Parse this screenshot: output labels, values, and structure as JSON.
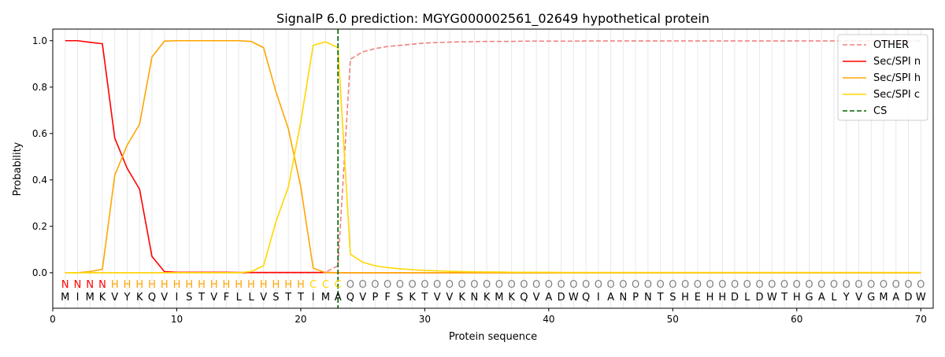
{
  "chart_data": {
    "type": "line",
    "title": "SignalP 6.0 prediction: MGYG000002561_02649 hypothetical protein",
    "xlabel": "Protein sequence",
    "ylabel": "Probability",
    "xlim": [
      0,
      71
    ],
    "ylim": [
      -0.153,
      1.05
    ],
    "xticks": [
      0,
      10,
      20,
      30,
      40,
      50,
      60,
      70
    ],
    "yticks": [
      0.0,
      0.2,
      0.4,
      0.6,
      0.8,
      1.0
    ],
    "ytick_labels": [
      "0.0",
      "0.2",
      "0.4",
      "0.6",
      "0.8",
      "1.0"
    ],
    "legend_position": "top-right",
    "sequence": [
      "M",
      "I",
      "M",
      "K",
      "V",
      "Y",
      "K",
      "Q",
      "V",
      "I",
      "S",
      "T",
      "V",
      "F",
      "L",
      "L",
      "V",
      "S",
      "T",
      "T",
      "I",
      "M",
      "A",
      "Q",
      "V",
      "P",
      "F",
      "S",
      "K",
      "T",
      "V",
      "V",
      "K",
      "N",
      "K",
      "M",
      "K",
      "Q",
      "V",
      "A",
      "D",
      "W",
      "Q",
      "I",
      "A",
      "N",
      "P",
      "N",
      "T",
      "S",
      "H",
      "E",
      "H",
      "H",
      "D",
      "L",
      "D",
      "W",
      "T",
      "H",
      "G",
      "A",
      "L",
      "Y",
      "V",
      "G",
      "M",
      "A",
      "D",
      "W"
    ],
    "labels": [
      "N",
      "N",
      "N",
      "N",
      "H",
      "H",
      "H",
      "H",
      "H",
      "H",
      "H",
      "H",
      "H",
      "H",
      "H",
      "H",
      "H",
      "H",
      "H",
      "H",
      "C",
      "C",
      "C",
      "O",
      "O",
      "O",
      "O",
      "O",
      "O",
      "O",
      "O",
      "O",
      "O",
      "O",
      "O",
      "O",
      "O",
      "O",
      "O",
      "O",
      "O",
      "O",
      "O",
      "O",
      "O",
      "O",
      "O",
      "O",
      "O",
      "O",
      "O",
      "O",
      "O",
      "O",
      "O",
      "O",
      "O",
      "O",
      "O",
      "O",
      "O",
      "O",
      "O",
      "O",
      "O",
      "O",
      "O",
      "O",
      "O",
      "O"
    ],
    "label_colors": {
      "N": "#ff0000",
      "H": "#ffa500",
      "C": "#ffd700",
      "O": "#808080"
    },
    "cs_position": 23,
    "series": [
      {
        "name": "OTHER",
        "color": "#f08080",
        "dash": true,
        "values": [
          0,
          0,
          0,
          0,
          0,
          0,
          0,
          0,
          0,
          0,
          0,
          0,
          0,
          0,
          0,
          0,
          0,
          0,
          0,
          0,
          0,
          0.003,
          0.03,
          0.92,
          0.952,
          0.966,
          0.975,
          0.98,
          0.985,
          0.99,
          0.992,
          0.994,
          0.995,
          0.996,
          0.997,
          0.997,
          0.997,
          0.998,
          0.998,
          0.998,
          0.998,
          0.998,
          0.999,
          0.999,
          0.999,
          0.999,
          0.999,
          0.999,
          0.999,
          0.999,
          0.999,
          0.999,
          0.999,
          0.999,
          0.999,
          0.999,
          0.999,
          0.999,
          0.999,
          0.999,
          0.999,
          0.999,
          0.999,
          0.999,
          0.999,
          0.999,
          0.999,
          0.999,
          0.999,
          0.999
        ]
      },
      {
        "name": "Sec/SPI n",
        "color": "#ff0000",
        "values": [
          1.0,
          1.0,
          0.993,
          0.987,
          0.58,
          0.45,
          0.36,
          0.07,
          0.005,
          0.002,
          0.002,
          0.002,
          0.002,
          0.002,
          0.001,
          0.001,
          0.001,
          0.001,
          0.001,
          0.001,
          0.001,
          0.001,
          0,
          0,
          0,
          0,
          0,
          0,
          0,
          0,
          0,
          0,
          0,
          0,
          0,
          0,
          0,
          0,
          0,
          0,
          0,
          0,
          0,
          0,
          0,
          0,
          0,
          0,
          0,
          0,
          0,
          0,
          0,
          0,
          0,
          0,
          0,
          0,
          0,
          0,
          0,
          0,
          0,
          0,
          0,
          0,
          0,
          0,
          0,
          0
        ]
      },
      {
        "name": "Sec/SPI h",
        "color": "#ffa500",
        "values": [
          0,
          0,
          0.005,
          0.015,
          0.42,
          0.55,
          0.64,
          0.93,
          0.998,
          1.0,
          1.0,
          1.0,
          1.0,
          1.0,
          1.0,
          0.997,
          0.97,
          0.78,
          0.62,
          0.37,
          0.02,
          0,
          0,
          0,
          0,
          0,
          0,
          0,
          0,
          0,
          0,
          0,
          0,
          0,
          0,
          0,
          0,
          0,
          0,
          0,
          0,
          0,
          0,
          0,
          0,
          0,
          0,
          0,
          0,
          0,
          0,
          0,
          0,
          0,
          0,
          0,
          0,
          0,
          0,
          0,
          0,
          0,
          0,
          0,
          0,
          0,
          0,
          0,
          0,
          0
        ]
      },
      {
        "name": "Sec/SPI c",
        "color": "#ffd700",
        "values": [
          0,
          0,
          0,
          0,
          0,
          0,
          0,
          0,
          0,
          0,
          0,
          0,
          0,
          0,
          0,
          0.005,
          0.03,
          0.22,
          0.37,
          0.65,
          0.98,
          0.995,
          0.97,
          0.08,
          0.045,
          0.03,
          0.022,
          0.017,
          0.013,
          0.01,
          0.008,
          0.006,
          0.005,
          0.004,
          0.003,
          0.003,
          0.002,
          0.002,
          0.002,
          0.002,
          0.001,
          0.001,
          0.001,
          0.001,
          0.001,
          0.001,
          0.001,
          0.001,
          0.001,
          0.001,
          0.001,
          0.001,
          0.001,
          0.001,
          0.001,
          0.001,
          0.001,
          0.001,
          0.001,
          0.001,
          0.001,
          0.001,
          0.001,
          0.001,
          0.001,
          0.001,
          0.001,
          0.001,
          0.001,
          0.001
        ]
      }
    ],
    "cs_legend": {
      "name": "CS",
      "color": "#006400"
    }
  }
}
